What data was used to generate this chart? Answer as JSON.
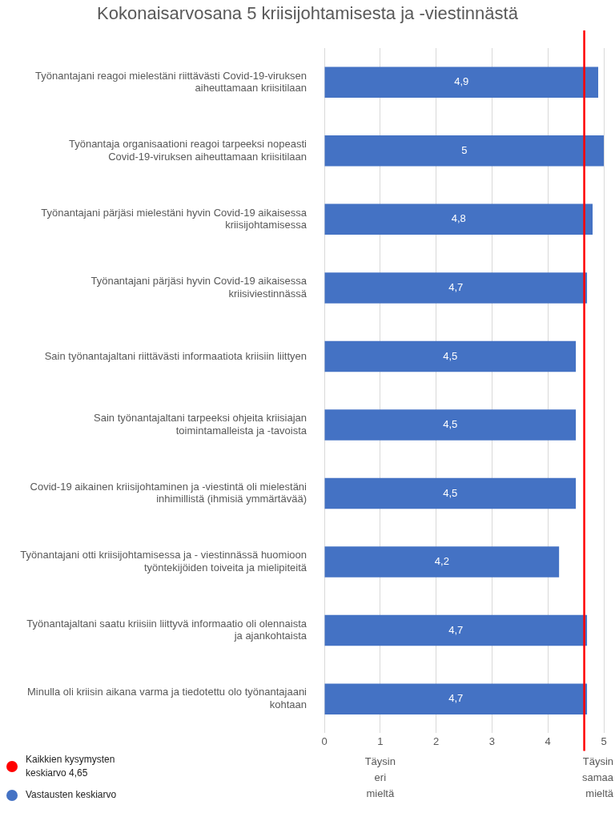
{
  "chart_data": {
    "type": "bar",
    "orientation": "horizontal",
    "title": "Kokonaisarvosana 5 kriisijohtamisesta ja -viestinnästä",
    "categories": [
      "Työnantajani reagoi mielestäni riittävästi Covid-19-viruksen aiheuttamaan kriisitilaan",
      "Työnantaja organisaationi reagoi tarpeeksi nopeasti Covid-19-viruksen aiheuttamaan kriisitilaan",
      "Työnantajani pärjäsi mielestäni hyvin Covid-19 aikaisessa kriisijohtamisessa",
      "Työnantajani pärjäsi hyvin Covid-19 aikaisessa kriisiviestinnässä",
      "Sain työnantajaltani riittävästi informaatiota kriisiin liittyen",
      "Sain työnantajaltani tarpeeksi ohjeita kriisiajan toimintamalleista ja -tavoista",
      "Covid-19 aikainen kriisijohtaminen ja -viestintä oli mielestäni inhimillistä (ihmisiä ymmärtävää)",
      "Työnantajani otti kriisijohtamisessa ja - viestinnässä huomioon työntekijöiden toiveita ja mielipiteitä",
      "Työnantajaltani saatu kriisiin liittyvä informaatio oli olennaista ja ajankohtaista",
      "Minulla oli kriisin aikana varma ja tiedotettu olo työnantajaani kohtaan"
    ],
    "series": [
      {
        "name": "Vastausten keskiarvo",
        "color": "#4472c4",
        "values": [
          4.9,
          5,
          4.8,
          4.7,
          4.5,
          4.5,
          4.5,
          4.2,
          4.7,
          4.7
        ]
      }
    ],
    "value_labels": [
      "4,9",
      "5",
      "4,8",
      "4,7",
      "4,5",
      "4,5",
      "4,5",
      "4,2",
      "4,7",
      "4,7"
    ],
    "xlim": [
      0,
      5
    ],
    "xticks": [
      0,
      1,
      2,
      3,
      4,
      5
    ],
    "grid": "x",
    "legend": "bottom left",
    "ref_lines": [
      {
        "axis": "x",
        "value": 4.65,
        "label": "Kaikkien kysymysten keskiarvo 4,65",
        "color": "#ff0000"
      }
    ],
    "annotations": [
      "Täysin eri mieltä",
      "Täysin samaa mieltä"
    ]
  }
}
